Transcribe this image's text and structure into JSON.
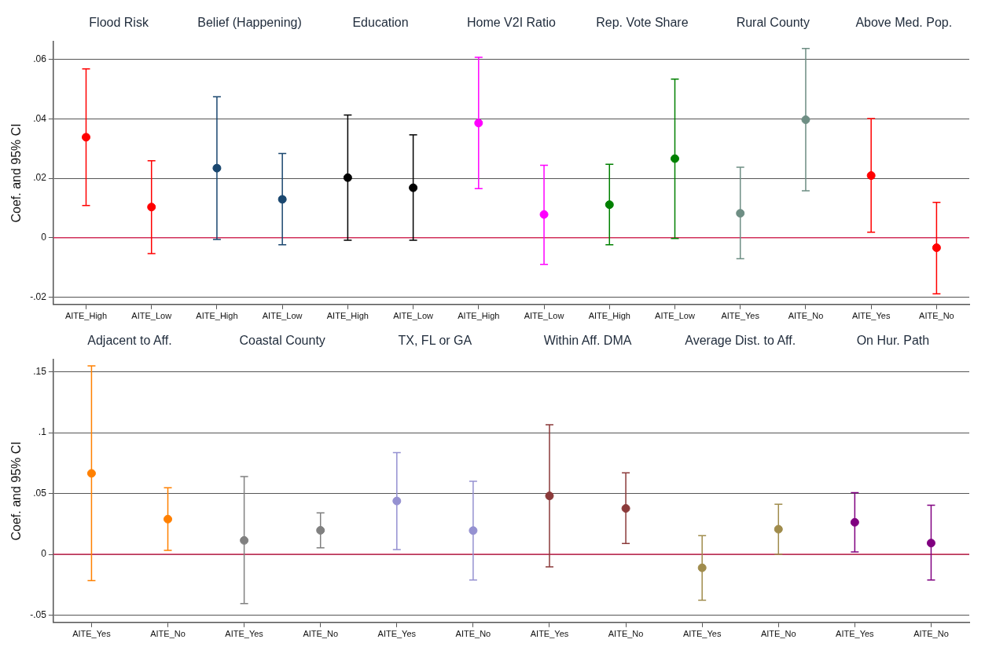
{
  "chart_data": [
    {
      "type": "scatter",
      "ylabel": "Coef. and 95% CI",
      "marker": "circle",
      "grid": "y",
      "legend": false,
      "annotations": [
        "Flood Risk",
        "Belief (Happening)",
        "Education",
        "Home V2I Ratio",
        "Rep. Vote Share",
        "Rural County",
        "Above Med. Pop."
      ],
      "categories": [
        "AITE_High",
        "AITE_Low",
        "AITE_High",
        "AITE_Low",
        "AITE_High",
        "AITE_Low",
        "AITE_High",
        "AITE_Low",
        "AITE_High",
        "AITE_Low",
        "AITE_Yes",
        "AITE_No",
        "AITE_Yes",
        "AITE_No"
      ],
      "values": [
        0.0338,
        0.0103,
        0.0234,
        0.0129,
        0.0202,
        0.0168,
        0.0386,
        0.0078,
        0.0111,
        0.0266,
        0.0082,
        0.0397,
        0.0209,
        -0.0034
      ],
      "errors": [
        [
          0.0108,
          0.0568
        ],
        [
          -0.0054,
          0.0259
        ],
        [
          -0.0006,
          0.0474
        ],
        [
          -0.0024,
          0.0283
        ],
        [
          -0.0009,
          0.0413
        ],
        [
          -0.0009,
          0.0346
        ],
        [
          0.0165,
          0.0607
        ],
        [
          -0.009,
          0.0244
        ],
        [
          -0.0024,
          0.0247
        ],
        [
          -0.0003,
          0.0534
        ],
        [
          -0.0071,
          0.0237
        ],
        [
          0.0158,
          0.0637
        ],
        [
          0.0018,
          0.0401
        ],
        [
          -0.0189,
          0.0119
        ]
      ],
      "colors": [
        "#ff0000",
        "#ff0000",
        "#1a476f",
        "#1a476f",
        "#000000",
        "#000000",
        "#ff00ff",
        "#ff00ff",
        "#008000",
        "#008000",
        "#6e8e84",
        "#6e8e84",
        "#ff0000",
        "#ff0000"
      ],
      "ylim": [
        -0.0225,
        0.066
      ],
      "yticks": [
        {
          "value": -0.02,
          "label": "-.02"
        },
        {
          "value": 0,
          "label": "0"
        },
        {
          "value": 0.02,
          "label": ".02"
        },
        {
          "value": 0.04,
          "label": ".04"
        },
        {
          "value": 0.06,
          "label": ".06"
        }
      ],
      "ref_lines": [
        {
          "axis": "y",
          "value": 0,
          "color": "#d1305a"
        }
      ]
    },
    {
      "type": "scatter",
      "ylabel": "Coef. and 95% CI",
      "marker": "circle",
      "grid": "y",
      "legend": false,
      "annotations": [
        "Adjacent to Aff.",
        "Coastal County",
        "TX, FL or GA",
        "Within Aff. DMA",
        "Average Dist. to Aff.",
        "On Hur. Path"
      ],
      "categories": [
        "AITE_Yes",
        "AITE_No",
        "AITE_Yes",
        "AITE_No",
        "AITE_Yes",
        "AITE_No",
        "AITE_Yes",
        "AITE_No",
        "AITE_Yes",
        "AITE_No",
        "AITE_Yes",
        "AITE_No"
      ],
      "values": [
        0.0665,
        0.0289,
        0.0114,
        0.0197,
        0.0438,
        0.0195,
        0.048,
        0.0377,
        -0.0111,
        0.0206,
        0.0263,
        0.0092
      ],
      "errors": [
        [
          -0.0216,
          0.1549
        ],
        [
          0.0032,
          0.0546
        ],
        [
          -0.0405,
          0.0638
        ],
        [
          0.0054,
          0.0341
        ],
        [
          0.0038,
          0.0835
        ],
        [
          -0.0211,
          0.06
        ],
        [
          -0.0103,
          0.1065
        ],
        [
          0.0089,
          0.0669
        ],
        [
          -0.0377,
          0.0154
        ],
        [
          0,
          0.0412
        ],
        [
          0.0019,
          0.0507
        ],
        [
          -0.0211,
          0.0404
        ]
      ],
      "colors": [
        "#ff8000",
        "#ff8000",
        "#808080",
        "#808080",
        "#9591d1",
        "#9591d1",
        "#8b3a3a",
        "#8b3a3a",
        "#a08c4c",
        "#a08c4c",
        "#800080",
        "#800080"
      ],
      "ylim": [
        -0.056,
        0.16
      ],
      "yticks": [
        {
          "value": -0.05,
          "label": "-.05"
        },
        {
          "value": 0,
          "label": "0"
        },
        {
          "value": 0.05,
          "label": ".05"
        },
        {
          "value": 0.1,
          "label": ".1"
        },
        {
          "value": 0.15,
          "label": ".15"
        }
      ],
      "ref_lines": [
        {
          "axis": "y",
          "value": 0,
          "color": "#d1305a"
        }
      ]
    }
  ]
}
